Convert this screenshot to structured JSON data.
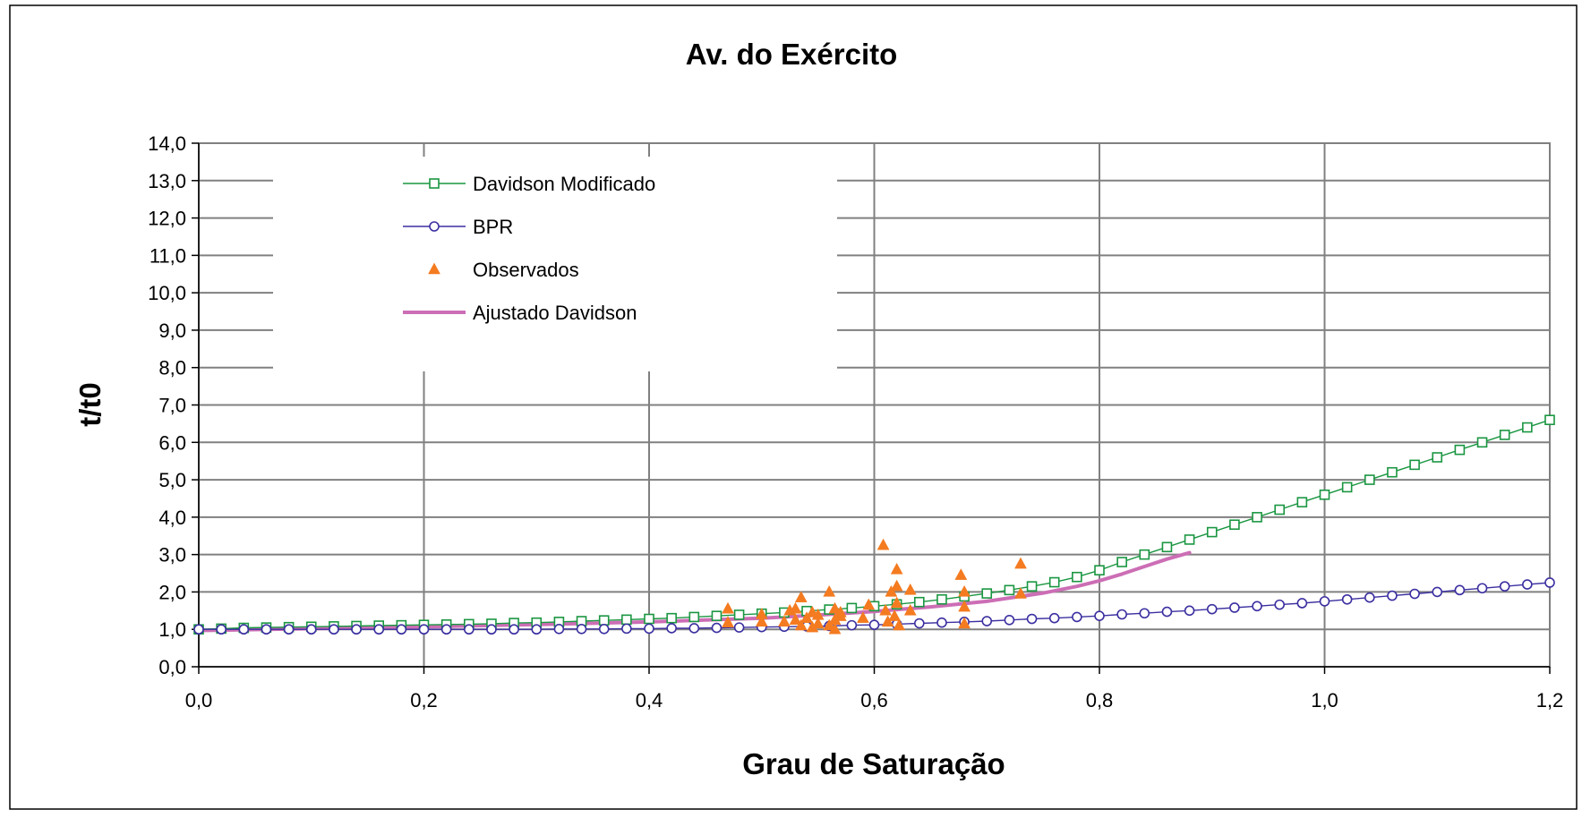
{
  "chart_data": {
    "type": "line",
    "title": "Av. do Exército",
    "xlabel": "Grau de Saturação",
    "ylabel": "t/t0",
    "xlim": [
      0,
      1.2
    ],
    "ylim": [
      0,
      14
    ],
    "x_ticks": [
      "0,0",
      "0,2",
      "0,4",
      "0,6",
      "0,8",
      "1,0",
      "1,2"
    ],
    "y_ticks": [
      "0,0",
      "1,0",
      "2,0",
      "3,0",
      "4,0",
      "5,0",
      "6,0",
      "7,0",
      "8,0",
      "9,0",
      "10,0",
      "11,0",
      "12,0",
      "13,0",
      "14,0"
    ],
    "grid": true,
    "legend_position": "top-left inside plot",
    "series": [
      {
        "name": "Davidson Modificado",
        "kind": "line-markers",
        "marker": "square",
        "color": "#1a9641",
        "x": [
          0,
          0.02,
          0.04,
          0.06,
          0.08,
          0.1,
          0.12,
          0.14,
          0.16,
          0.18,
          0.2,
          0.22,
          0.24,
          0.26,
          0.28,
          0.3,
          0.32,
          0.34,
          0.36,
          0.38,
          0.4,
          0.42,
          0.44,
          0.46,
          0.48,
          0.5,
          0.52,
          0.54,
          0.56,
          0.58,
          0.6,
          0.62,
          0.64,
          0.66,
          0.68,
          0.7,
          0.72,
          0.74,
          0.76,
          0.78,
          0.8,
          0.82,
          0.84,
          0.86,
          0.88,
          0.9,
          0.92,
          0.94,
          0.96,
          0.98,
          1.0,
          1.02,
          1.04,
          1.06,
          1.08,
          1.1,
          1.12,
          1.14,
          1.16,
          1.18,
          1.2
        ],
        "y": [
          1.0,
          1.02,
          1.04,
          1.05,
          1.06,
          1.07,
          1.08,
          1.09,
          1.1,
          1.11,
          1.12,
          1.13,
          1.14,
          1.15,
          1.17,
          1.18,
          1.2,
          1.22,
          1.24,
          1.26,
          1.28,
          1.3,
          1.33,
          1.36,
          1.39,
          1.42,
          1.45,
          1.49,
          1.53,
          1.57,
          1.62,
          1.67,
          1.73,
          1.8,
          1.88,
          1.96,
          2.05,
          2.15,
          2.26,
          2.4,
          2.58,
          2.8,
          3.0,
          3.2,
          3.4,
          3.6,
          3.8,
          4.0,
          4.2,
          4.4,
          4.6,
          4.8,
          5.0,
          5.2,
          5.4,
          5.6,
          5.8,
          6.0,
          6.2,
          6.4,
          6.6
        ]
      },
      {
        "name": "BPR",
        "kind": "line-markers",
        "marker": "circle",
        "color": "#3b2fa0",
        "x": [
          0,
          0.02,
          0.04,
          0.06,
          0.08,
          0.1,
          0.12,
          0.14,
          0.16,
          0.18,
          0.2,
          0.22,
          0.24,
          0.26,
          0.28,
          0.3,
          0.32,
          0.34,
          0.36,
          0.38,
          0.4,
          0.42,
          0.44,
          0.46,
          0.48,
          0.5,
          0.52,
          0.54,
          0.56,
          0.58,
          0.6,
          0.62,
          0.64,
          0.66,
          0.68,
          0.7,
          0.72,
          0.74,
          0.76,
          0.78,
          0.8,
          0.82,
          0.84,
          0.86,
          0.88,
          0.9,
          0.92,
          0.94,
          0.96,
          0.98,
          1.0,
          1.02,
          1.04,
          1.06,
          1.08,
          1.1,
          1.12,
          1.14,
          1.16,
          1.18,
          1.2
        ],
        "y": [
          1.0,
          1.0,
          1.0,
          1.0,
          1.0,
          1.0,
          1.0,
          1.0,
          1.0,
          1.0,
          1.0,
          1.0,
          1.0,
          1.0,
          1.0,
          1.0,
          1.01,
          1.01,
          1.01,
          1.02,
          1.02,
          1.03,
          1.03,
          1.04,
          1.05,
          1.06,
          1.07,
          1.08,
          1.09,
          1.11,
          1.12,
          1.14,
          1.16,
          1.18,
          1.2,
          1.22,
          1.25,
          1.28,
          1.3,
          1.33,
          1.36,
          1.4,
          1.43,
          1.47,
          1.5,
          1.54,
          1.58,
          1.62,
          1.66,
          1.7,
          1.75,
          1.8,
          1.85,
          1.9,
          1.95,
          2.0,
          2.05,
          2.1,
          2.15,
          2.2,
          2.25
        ]
      },
      {
        "name": "Observados",
        "kind": "scatter",
        "marker": "triangle",
        "color": "#f47b20",
        "x": [
          0.47,
          0.47,
          0.5,
          0.5,
          0.52,
          0.525,
          0.53,
          0.53,
          0.535,
          0.535,
          0.54,
          0.545,
          0.545,
          0.55,
          0.55,
          0.56,
          0.56,
          0.565,
          0.565,
          0.565,
          0.57,
          0.57,
          0.59,
          0.595,
          0.608,
          0.61,
          0.612,
          0.615,
          0.618,
          0.62,
          0.62,
          0.62,
          0.622,
          0.632,
          0.632,
          0.677,
          0.68,
          0.68,
          0.68,
          0.73,
          0.73
        ],
        "y": [
          1.55,
          1.18,
          1.4,
          1.2,
          1.2,
          1.5,
          1.25,
          1.55,
          1.1,
          1.85,
          1.3,
          1.45,
          1.05,
          1.15,
          1.38,
          1.1,
          2.0,
          1.0,
          1.25,
          1.55,
          1.35,
          1.45,
          1.3,
          1.65,
          3.25,
          1.5,
          1.2,
          2.0,
          1.35,
          2.6,
          2.15,
          1.7,
          1.1,
          2.05,
          1.5,
          2.45,
          2.0,
          1.6,
          1.15,
          2.75,
          1.95
        ]
      },
      {
        "name": "Ajustado Davidson",
        "kind": "line",
        "color": "#cc6eb5",
        "x": [
          0,
          0.1,
          0.2,
          0.3,
          0.4,
          0.45,
          0.5,
          0.55,
          0.6,
          0.65,
          0.7,
          0.75,
          0.78,
          0.8,
          0.82,
          0.84,
          0.86,
          0.88
        ],
        "y": [
          0.97,
          1.02,
          1.07,
          1.13,
          1.2,
          1.25,
          1.3,
          1.38,
          1.48,
          1.6,
          1.75,
          1.97,
          2.15,
          2.3,
          2.48,
          2.68,
          2.88,
          3.05
        ]
      }
    ]
  }
}
